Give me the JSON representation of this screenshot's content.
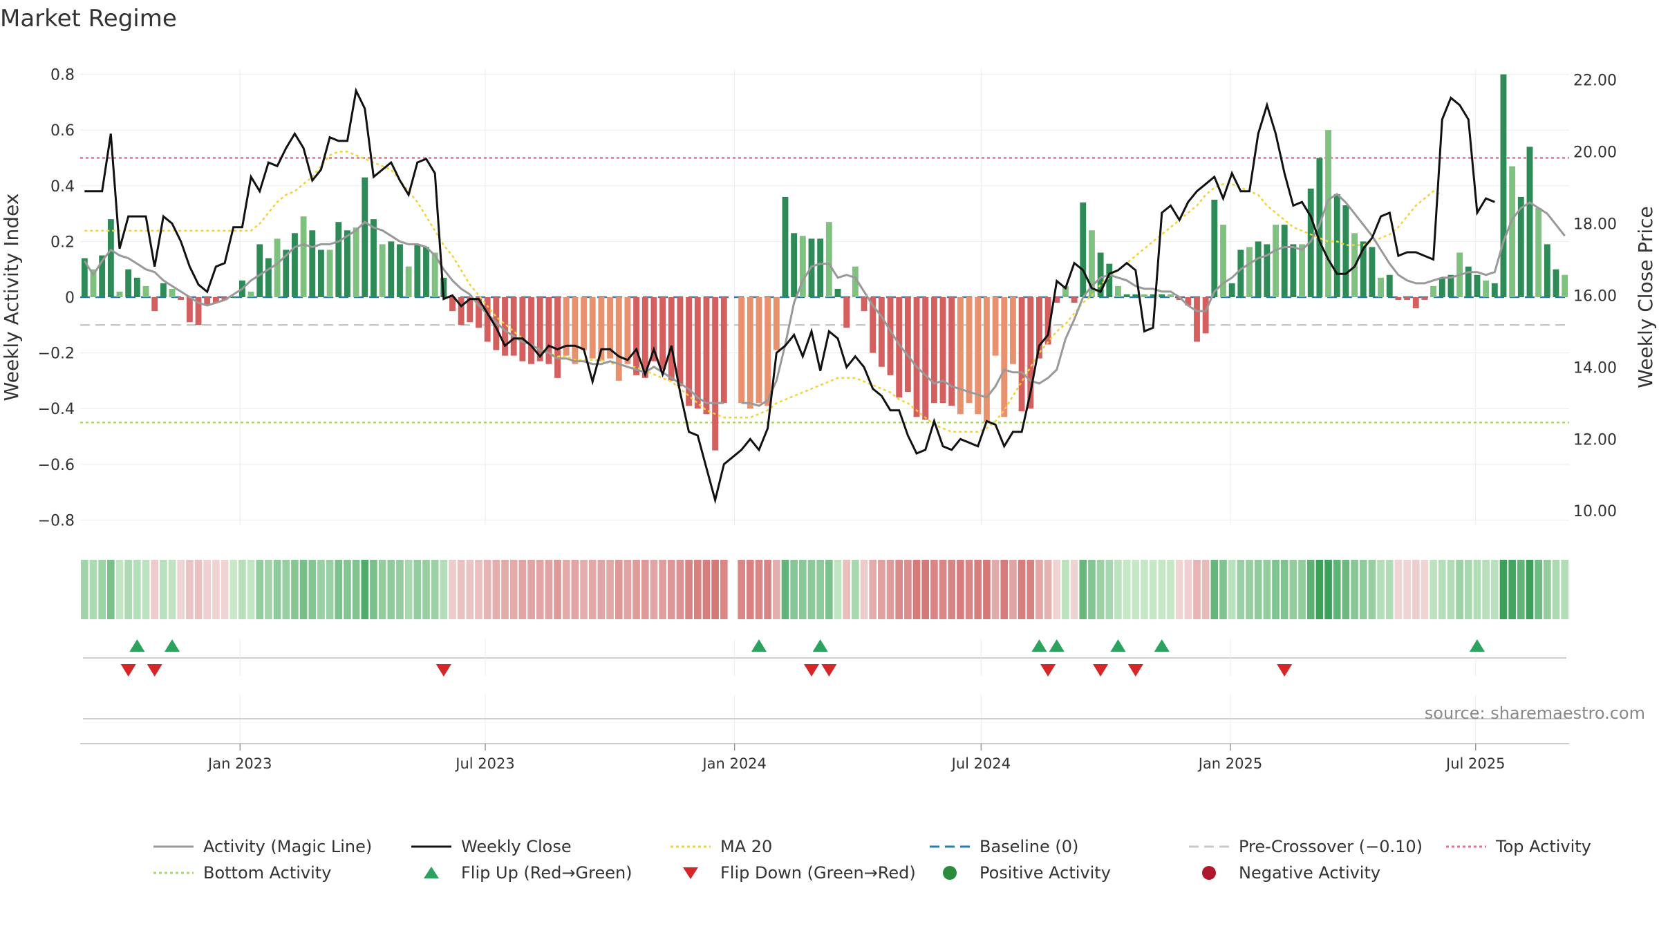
{
  "chart_data": {
    "type": "bar",
    "title": "Market Regime",
    "source": "source: sharemaestro.com",
    "y_left": {
      "label": "Weekly Activity Index",
      "range": [
        -0.88,
        0.82
      ],
      "ticks": [
        "0.8",
        "0.6",
        "0.4",
        "0.2",
        "0",
        "−0.2",
        "−0.4",
        "−0.6",
        "−0.8"
      ]
    },
    "y_right": {
      "label": "Weekly Close Price",
      "range": [
        9.6,
        22.3
      ],
      "ticks": [
        "22.00",
        "20.00",
        "18.00",
        "16.00",
        "14.00",
        "12.00",
        "10.00"
      ]
    },
    "x_axis": {
      "start": "2022-09-05",
      "end": "2025-09-08",
      "ticks": [
        {
          "date": "2023-01-01",
          "label": "Jan 2023"
        },
        {
          "date": "2023-07-01",
          "label": "Jul 2023"
        },
        {
          "date": "2024-01-01",
          "label": "Jan 2024"
        },
        {
          "date": "2024-07-01",
          "label": "Jul 2024"
        },
        {
          "date": "2025-01-01",
          "label": "Jan 2025"
        },
        {
          "date": "2025-07-01",
          "label": "Jul 2025"
        }
      ]
    },
    "reference_lines": {
      "top_activity": 0.5,
      "bottom_activity": -0.45,
      "pre_crossover": -0.1,
      "baseline": 0
    },
    "series": [
      {
        "name": "Weekly Activity Index (bars)",
        "values": [
          0.14,
          0.1,
          0.15,
          0.28,
          0.02,
          0.1,
          0.07,
          0.04,
          -0.05,
          0.05,
          0.03,
          -0.01,
          -0.09,
          -0.1,
          -0.03,
          -0.02,
          -0.01,
          0,
          0.06,
          0.02,
          0.19,
          0.14,
          0.21,
          0.17,
          0.23,
          0.29,
          0.24,
          0.17,
          0.17,
          0.27,
          0.24,
          0.25,
          0.43,
          0.28,
          0.19,
          0.2,
          0.19,
          0.11,
          0.19,
          0.18,
          0.16,
          0.07,
          -0.05,
          -0.1,
          -0.09,
          -0.11,
          -0.16,
          -0.19,
          -0.21,
          -0.21,
          -0.23,
          -0.24,
          -0.23,
          -0.24,
          -0.29,
          -0.21,
          -0.24,
          -0.19,
          -0.22,
          -0.23,
          -0.22,
          -0.3,
          -0.24,
          -0.28,
          -0.29,
          -0.23,
          -0.26,
          -0.3,
          -0.32,
          -0.39,
          -0.4,
          -0.42,
          -0.55,
          -0.38,
          null,
          -0.38,
          -0.4,
          -0.38,
          -0.39,
          -0.19,
          0.36,
          0.23,
          0.22,
          0.21,
          0.21,
          0.27,
          0.03,
          -0.11,
          0.11,
          -0.05,
          -0.2,
          -0.25,
          -0.28,
          -0.36,
          -0.34,
          -0.43,
          -0.44,
          -0.38,
          -0.38,
          -0.39,
          -0.42,
          -0.38,
          -0.42,
          -0.45,
          -0.21,
          -0.43,
          -0.24,
          -0.41,
          -0.4,
          -0.22,
          -0.17,
          -0.02,
          0.04,
          -0.02,
          0.34,
          0.24,
          0.16,
          0.12,
          0.04,
          0.01,
          0.01,
          0.01,
          0.01,
          0.01,
          0.01,
          -0.01,
          -0.03,
          -0.16,
          -0.13,
          0.35,
          0.26,
          0.05,
          0.17,
          0.18,
          0.2,
          0.19,
          0.26,
          0.26,
          0.19,
          0.19,
          0.39,
          0.5,
          0.6,
          0.37,
          0.33,
          0.23,
          0.2,
          0.18,
          0.07,
          0.08,
          -0.01,
          -0.01,
          -0.04,
          -0.01,
          0.04,
          0.07,
          0.08,
          0.16,
          0.11,
          0.08,
          0.06,
          0.05,
          0.8,
          0.47,
          0.36,
          0.54,
          0.32,
          0.19,
          0.1,
          0.08
        ]
      },
      {
        "name": "Activity (Magic Line)",
        "values": [
          0.13,
          0.08,
          0.13,
          0.17,
          0.15,
          0.14,
          0.12,
          0.1,
          0.09,
          0.06,
          0.04,
          0.02,
          0,
          -0.02,
          -0.03,
          -0.02,
          -0.01,
          0.01,
          0.03,
          0.06,
          0.08,
          0.1,
          0.12,
          0.15,
          0.18,
          0.19,
          0.18,
          0.19,
          0.19,
          0.2,
          0.22,
          0.24,
          0.27,
          0.25,
          0.24,
          0.22,
          0.2,
          0.19,
          0.19,
          0.18,
          0.15,
          0.1,
          0.06,
          0.03,
          0.01,
          -0.03,
          -0.06,
          -0.09,
          -0.12,
          -0.14,
          -0.16,
          -0.17,
          -0.19,
          -0.2,
          -0.22,
          -0.22,
          -0.23,
          -0.23,
          -0.24,
          -0.24,
          -0.23,
          -0.24,
          -0.25,
          -0.26,
          -0.27,
          -0.25,
          -0.27,
          -0.29,
          -0.31,
          -0.33,
          -0.36,
          -0.38,
          -0.38,
          -0.38,
          null,
          -0.38,
          -0.38,
          -0.39,
          -0.37,
          -0.3,
          -0.17,
          -0.02,
          0.06,
          0.11,
          0.12,
          0.12,
          0.07,
          0.08,
          0.07,
          0.02,
          -0.03,
          -0.07,
          -0.12,
          -0.17,
          -0.21,
          -0.25,
          -0.28,
          -0.31,
          -0.3,
          -0.32,
          -0.33,
          -0.34,
          -0.35,
          -0.36,
          -0.32,
          -0.26,
          -0.27,
          -0.27,
          -0.3,
          -0.31,
          -0.29,
          -0.26,
          -0.15,
          -0.08,
          0,
          0.04,
          0.07,
          0.08,
          0.07,
          0.06,
          0.04,
          0.03,
          0.03,
          0.02,
          0.02,
          0,
          -0.03,
          -0.05,
          -0.05,
          0.02,
          0.05,
          0.07,
          0.1,
          0.12,
          0.14,
          0.15,
          0.17,
          0.18,
          0.18,
          0.17,
          0.2,
          0.26,
          0.35,
          0.37,
          0.34,
          0.3,
          0.26,
          0.22,
          0.17,
          0.12,
          0.08,
          0.06,
          0.05,
          0.05,
          0.06,
          0.07,
          0.07,
          0.08,
          0.09,
          0.09,
          0.08,
          0.09,
          0.2,
          0.28,
          0.32,
          0.34,
          0.32,
          0.3,
          0.26,
          0.22
        ]
      },
      {
        "name": "Weekly Close",
        "values": [
          18.9,
          18.9,
          18.9,
          20.5,
          17.3,
          18.2,
          18.2,
          18.2,
          16.8,
          18.2,
          18,
          17.5,
          16.8,
          16.3,
          16.1,
          16.8,
          16.9,
          17.9,
          17.9,
          19.3,
          18.9,
          19.7,
          19.6,
          20.1,
          20.5,
          20.1,
          19.2,
          19.5,
          20.4,
          20.3,
          20.3,
          21.7,
          21.2,
          19.3,
          19.5,
          19.7,
          19.2,
          18.8,
          19.7,
          19.8,
          19.4,
          15.9,
          16,
          15.7,
          15.9,
          15.9,
          15.5,
          15.1,
          14.6,
          14.8,
          14.8,
          14.6,
          14.3,
          14.6,
          14.5,
          14.6,
          14.6,
          14.5,
          13.6,
          14.5,
          14.5,
          14.3,
          14.2,
          14.5,
          13.8,
          14.5,
          13.8,
          14.6,
          13.3,
          12.2,
          12.1,
          11.2,
          10.3,
          11.3,
          11.5,
          11.7,
          12,
          11.7,
          12.3,
          14.4,
          14.6,
          14.9,
          14.3,
          15,
          13.9,
          15,
          14.8,
          14,
          14.3,
          14,
          13.4,
          13.2,
          12.8,
          12.8,
          12.1,
          11.6,
          11.7,
          12.5,
          11.8,
          11.7,
          12,
          11.9,
          11.8,
          12.5,
          12.4,
          11.8,
          12.2,
          12.2,
          13.3,
          14.6,
          14.9,
          16.4,
          16.2,
          16.9,
          16.7,
          16.2,
          16.1,
          16.6,
          16.7,
          16.9,
          16.7,
          15,
          15.1,
          18.3,
          18.5,
          18.1,
          18.6,
          18.9,
          19.1,
          19.3,
          18.7,
          19.4,
          18.9,
          18.9,
          20.5,
          21.3,
          20.5,
          19.4,
          18.5,
          18.6,
          18.2,
          17.5,
          17,
          16.6,
          16.6,
          16.8,
          17.3,
          17.6,
          18.2,
          18.3,
          17.1,
          17.2,
          17.2,
          17.1,
          17,
          20.9,
          21.5,
          21.3,
          20.9,
          18.3,
          18.7,
          18.6
        ]
      },
      {
        "name": "MA 20",
        "values": [
          17.8,
          17.8,
          17.8,
          17.8,
          17.8,
          17.8,
          17.8,
          17.8,
          17.8,
          17.8,
          17.8,
          17.8,
          17.8,
          17.8,
          17.8,
          17.8,
          17.8,
          17.8,
          17.8,
          17.8,
          18,
          18.3,
          18.6,
          18.8,
          18.9,
          19.1,
          19.3,
          19.6,
          19.9,
          20,
          20,
          19.9,
          19.8,
          19.7,
          19.6,
          19.5,
          19.2,
          18.9,
          18.6,
          18.2,
          17.8,
          17.4,
          17.1,
          16.7,
          16.3,
          16,
          15.7,
          15.4,
          15.2,
          15,
          14.8,
          14.6,
          14.5,
          14.4,
          14.3,
          14.3,
          14.2,
          14.2,
          14.2,
          14.2,
          14.1,
          14.1,
          14,
          14,
          13.9,
          13.8,
          13.7,
          13.6,
          13.4,
          13.2,
          13,
          12.8,
          12.7,
          12.6,
          12.6,
          12.6,
          12.6,
          12.7,
          12.8,
          13,
          13.1,
          13.2,
          13.3,
          13.4,
          13.5,
          13.6,
          13.7,
          13.7,
          13.7,
          13.6,
          13.5,
          13.4,
          13.3,
          13.1,
          13,
          12.8,
          12.6,
          12.4,
          12.3,
          12.2,
          12.2,
          12.2,
          12.2,
          12.3,
          12.5,
          12.8,
          13.2,
          13.6,
          14,
          14.4,
          14.7,
          15,
          15.2,
          15.5,
          15.8,
          16,
          16.3,
          16.5,
          16.7,
          16.9,
          17.1,
          17.3,
          17.5,
          17.7,
          17.9,
          18.1,
          18.3,
          18.5,
          18.8,
          19,
          19.1,
          19.1,
          19,
          18.9,
          18.8,
          18.5,
          18.3,
          18.1,
          17.9,
          17.8,
          17.7,
          17.6,
          17.5,
          17.5,
          17.4,
          17.4,
          17.4,
          17.5,
          17.6,
          17.7,
          17.9,
          18.2,
          18.5,
          18.7,
          18.9,
          18.8
        ]
      }
    ],
    "flip_up_weeks": [
      6,
      10,
      77,
      84,
      109,
      111,
      118,
      123,
      159
    ],
    "flip_down_weeks": [
      5,
      8,
      41,
      83,
      85,
      110,
      116,
      120,
      137
    ],
    "regime_strip": "Colour-coded weekly activity strip (green = positive, red = negative)",
    "legend": {
      "position": "bottom",
      "items": [
        {
          "label": "Activity (Magic Line)",
          "kind": "line",
          "color": "#999999",
          "dash": ""
        },
        {
          "label": "Weekly Close",
          "kind": "line",
          "color": "#111111",
          "dash": ""
        },
        {
          "label": "MA 20",
          "kind": "line",
          "color": "#f2d23a",
          "dash": "4,4"
        },
        {
          "label": "Baseline (0)",
          "kind": "line",
          "color": "#2b7bb0",
          "dash": "14,8"
        },
        {
          "label": "Pre-Crossover (−0.10)",
          "kind": "line",
          "color": "#c9c9c9",
          "dash": "14,8"
        },
        {
          "label": "Top Activity",
          "kind": "line",
          "color": "#e07388",
          "dash": "4,4"
        },
        {
          "label": "Bottom Activity",
          "kind": "line",
          "color": "#a6d96a",
          "dash": "4,4"
        },
        {
          "label": "Flip Up (Red→Green)",
          "kind": "triangle-up",
          "color": "#2ca25f"
        },
        {
          "label": "Flip Down (Green→Red)",
          "kind": "triangle-down",
          "color": "#d62728"
        },
        {
          "label": "Positive Activity",
          "kind": "dot",
          "color": "#2b8a3e"
        },
        {
          "label": "Negative Activity",
          "kind": "dot",
          "color": "#b2182b"
        }
      ]
    }
  }
}
